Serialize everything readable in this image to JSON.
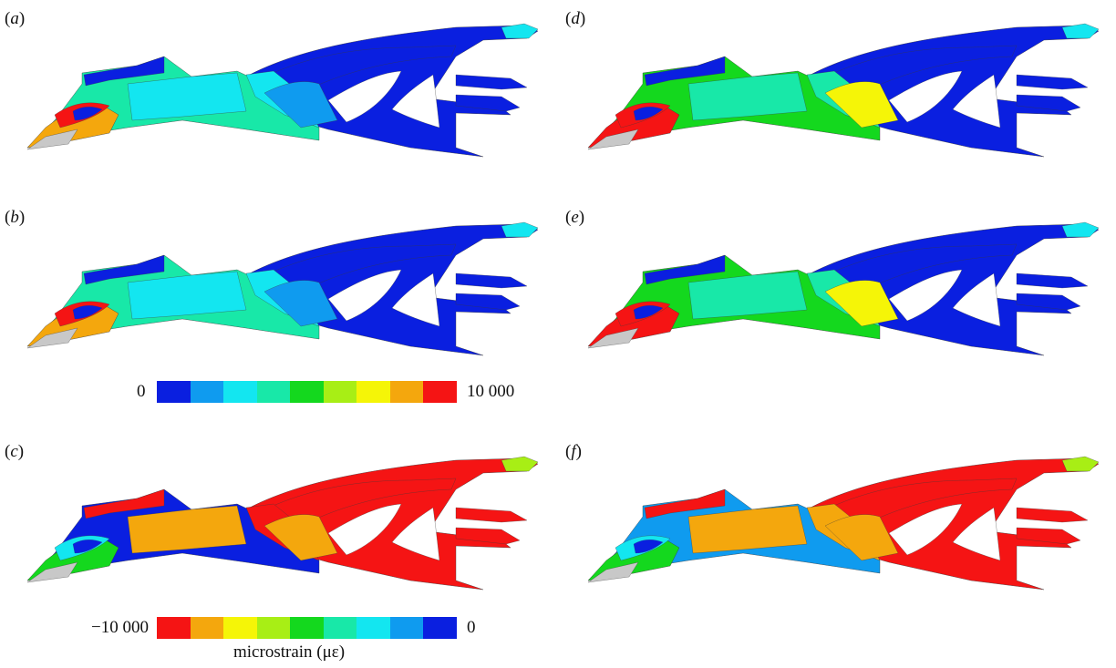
{
  "panels": [
    {
      "id": "a",
      "label": "a",
      "mode": "tension",
      "tint": 0
    },
    {
      "id": "b",
      "label": "b",
      "mode": "tension",
      "tint": 0
    },
    {
      "id": "c",
      "label": "c",
      "mode": "compression",
      "tint": 0
    },
    {
      "id": "d",
      "label": "d",
      "mode": "tension",
      "tint": 1
    },
    {
      "id": "e",
      "label": "e",
      "mode": "tension",
      "tint": 1
    },
    {
      "id": "f",
      "label": "f",
      "mode": "compression",
      "tint": 1
    }
  ],
  "scale_tension": {
    "min_label": "0",
    "max_label": "10 000",
    "colors": [
      "#0a1fe0",
      "#0f9bef",
      "#13e6f0",
      "#18e8a8",
      "#14d81e",
      "#a8ee15",
      "#f5f507",
      "#f4a70d",
      "#f51414"
    ]
  },
  "scale_compression": {
    "min_label": "−10 000",
    "max_label": "0",
    "colors": [
      "#f51414",
      "#f4a70d",
      "#f5f507",
      "#a8ee15",
      "#14d81e",
      "#18e8a8",
      "#13e6f0",
      "#0f9bef",
      "#0a1fe0"
    ],
    "unit_label": "microstrain (με)"
  },
  "colors": {
    "bone_grey": "#c8c8c8",
    "outline": "#3a3a3a"
  }
}
